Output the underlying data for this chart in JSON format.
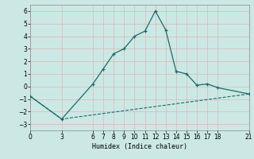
{
  "xlabel": "Humidex (Indice chaleur)",
  "background_color": "#cce8e4",
  "line_color": "#1a6b6b",
  "grid_color": "#b0d4d0",
  "x_ticks": [
    0,
    3,
    6,
    7,
    8,
    9,
    10,
    11,
    12,
    13,
    14,
    15,
    16,
    17,
    18,
    21
  ],
  "upper_line_x": [
    0,
    3,
    6,
    7,
    8,
    9,
    10,
    11,
    12,
    13,
    14,
    15,
    16,
    17,
    18,
    21
  ],
  "upper_line_y": [
    -0.8,
    -2.6,
    0.2,
    1.4,
    2.6,
    3.0,
    4.0,
    4.4,
    6.0,
    4.5,
    1.2,
    1.0,
    0.1,
    0.2,
    -0.1,
    -0.6
  ],
  "lower_line_x": [
    0,
    3,
    21
  ],
  "lower_line_y": [
    -0.8,
    -2.6,
    -0.6
  ],
  "ylim": [
    -3.5,
    6.5
  ],
  "xlim": [
    0,
    21
  ],
  "yticks": [
    -3,
    -2,
    -1,
    0,
    1,
    2,
    3,
    4,
    5,
    6
  ]
}
